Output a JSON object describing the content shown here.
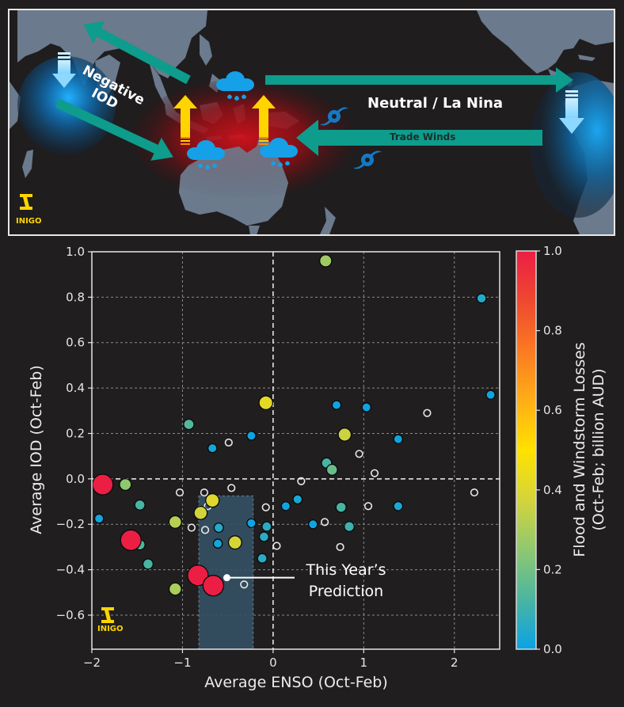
{
  "map": {
    "iod_label_line1": "Negative",
    "iod_label_line2": "IOD",
    "enso_label": "Neutral / La Nina",
    "trade_winds_label": "Trade Winds",
    "logo_text": "INIGO",
    "colors": {
      "ocean": "#1f1d1e",
      "land": "#6b7a8c",
      "arrow_teal": "#0e9c8c",
      "arrow_yellow": "#ffd400",
      "cloud_blue": "#16a0e8",
      "cyclone_blue": "#1479c4",
      "warm_glow": "#b0121a",
      "cool_glow": "#1aa0ea"
    },
    "icons": [
      "down-arrow-icon",
      "up-arrow-icon",
      "rain-cloud-icon",
      "cyclone-icon",
      "inigo-logo-icon"
    ]
  },
  "chart_data": {
    "type": "scatter",
    "xlabel": "Average ENSO (Oct-Feb)",
    "ylabel": "Average IOD (Oct-Feb)",
    "xlim": [
      -2.0,
      2.5
    ],
    "ylim": [
      -0.75,
      1.0
    ],
    "xticks": [
      "−2",
      "−1",
      "0",
      "1",
      "2"
    ],
    "xtick_values": [
      -2,
      -1,
      0,
      1,
      2
    ],
    "yticks": [
      "1.0",
      "0.8",
      "0.6",
      "0.4",
      "0.2",
      "0.0",
      "−0.2",
      "−0.4",
      "−0.6"
    ],
    "ytick_values": [
      1.0,
      0.8,
      0.6,
      0.4,
      0.2,
      0.0,
      -0.2,
      -0.4,
      -0.6
    ],
    "grid": true,
    "zero_lines": true,
    "colorbar": {
      "label_line1": "Flood and Windstorm Losses",
      "label_line2": "(Oct-Feb; billion AUD)",
      "range": [
        0.0,
        1.0
      ],
      "ticks": [
        "0.0",
        "0.2",
        "0.4",
        "0.6",
        "0.8",
        "1.0"
      ],
      "tick_values": [
        0.0,
        0.2,
        0.4,
        0.6,
        0.8,
        1.0
      ],
      "stops": [
        "#0aa2e6",
        "#4bb5a0",
        "#8fc870",
        "#d4d43a",
        "#ffe200",
        "#ffae16",
        "#fb7a22",
        "#ef4830",
        "#ec1e44"
      ]
    },
    "prediction_region": {
      "x_range": [
        -0.82,
        -0.22
      ],
      "y_range": [
        -0.75,
        -0.075
      ],
      "fill": "#345064"
    },
    "annotation": {
      "line1": "This Year’s",
      "line2": "Prediction",
      "point": [
        -0.51,
        -0.435
      ]
    },
    "logo_text": "INIGO",
    "points": [
      {
        "x": -1.88,
        "y": -0.025,
        "loss": 1.0
      },
      {
        "x": -1.63,
        "y": -0.025,
        "loss": 0.25
      },
      {
        "x": -1.47,
        "y": -0.115,
        "loss": 0.12
      },
      {
        "x": -1.92,
        "y": -0.175,
        "loss": 0.02
      },
      {
        "x": -1.47,
        "y": -0.29,
        "loss": 0.13
      },
      {
        "x": -1.57,
        "y": -0.27,
        "loss": 1.0
      },
      {
        "x": -1.38,
        "y": -0.375,
        "loss": 0.12
      },
      {
        "x": -1.08,
        "y": -0.19,
        "loss": 0.32
      },
      {
        "x": -1.08,
        "y": -0.485,
        "loss": 0.3
      },
      {
        "x": -0.83,
        "y": -0.425,
        "loss": 1.0
      },
      {
        "x": -0.66,
        "y": -0.47,
        "loss": 1.0
      },
      {
        "x": -0.8,
        "y": -0.15,
        "loss": 0.37
      },
      {
        "x": -0.67,
        "y": -0.095,
        "loss": 0.4
      },
      {
        "x": -0.42,
        "y": -0.28,
        "loss": 0.38
      },
      {
        "x": -0.6,
        "y": -0.215,
        "loss": 0.05
      },
      {
        "x": -0.61,
        "y": -0.285,
        "loss": 0.02
      },
      {
        "x": -0.24,
        "y": -0.195,
        "loss": 0.01
      },
      {
        "x": -0.07,
        "y": -0.21,
        "loss": 0.06
      },
      {
        "x": -0.1,
        "y": -0.255,
        "loss": 0.06
      },
      {
        "x": -0.12,
        "y": -0.35,
        "loss": 0.06
      },
      {
        "x": -0.93,
        "y": 0.24,
        "loss": 0.14
      },
      {
        "x": -0.67,
        "y": 0.135,
        "loss": 0.02
      },
      {
        "x": -0.24,
        "y": 0.19,
        "loss": 0.01
      },
      {
        "x": -0.08,
        "y": 0.335,
        "loss": 0.42
      },
      {
        "x": 0.58,
        "y": 0.96,
        "loss": 0.28
      },
      {
        "x": 0.7,
        "y": 0.325,
        "loss": 0.01
      },
      {
        "x": 1.03,
        "y": 0.315,
        "loss": 0.01
      },
      {
        "x": 0.79,
        "y": 0.195,
        "loss": 0.36
      },
      {
        "x": 1.38,
        "y": 0.175,
        "loss": 0.01
      },
      {
        "x": 0.59,
        "y": 0.07,
        "loss": 0.12
      },
      {
        "x": 0.65,
        "y": 0.04,
        "loss": 0.18
      },
      {
        "x": 2.3,
        "y": 0.795,
        "loss": 0.05
      },
      {
        "x": 2.4,
        "y": 0.37,
        "loss": 0.01
      },
      {
        "x": 0.14,
        "y": -0.12,
        "loss": 0.01
      },
      {
        "x": 0.27,
        "y": -0.09,
        "loss": 0.03
      },
      {
        "x": 0.44,
        "y": -0.2,
        "loss": 0.01
      },
      {
        "x": 0.75,
        "y": -0.125,
        "loss": 0.12
      },
      {
        "x": 0.84,
        "y": -0.21,
        "loss": 0.1
      },
      {
        "x": 1.38,
        "y": -0.12,
        "loss": 0.03
      },
      {
        "x": -1.03,
        "y": -0.06,
        "loss": null
      },
      {
        "x": -0.76,
        "y": -0.06,
        "loss": null
      },
      {
        "x": -0.46,
        "y": -0.04,
        "loss": null
      },
      {
        "x": -0.72,
        "y": -0.12,
        "loss": null
      },
      {
        "x": -0.9,
        "y": -0.215,
        "loss": null
      },
      {
        "x": -0.75,
        "y": -0.225,
        "loss": null
      },
      {
        "x": -0.32,
        "y": -0.465,
        "loss": null
      },
      {
        "x": -0.08,
        "y": -0.125,
        "loss": null
      },
      {
        "x": 0.04,
        "y": -0.295,
        "loss": null
      },
      {
        "x": 0.31,
        "y": -0.01,
        "loss": null
      },
      {
        "x": 0.57,
        "y": -0.19,
        "loss": null
      },
      {
        "x": 0.74,
        "y": -0.3,
        "loss": null
      },
      {
        "x": 1.05,
        "y": -0.12,
        "loss": null
      },
      {
        "x": -0.49,
        "y": 0.16,
        "loss": null
      },
      {
        "x": 0.95,
        "y": 0.11,
        "loss": null
      },
      {
        "x": 1.12,
        "y": 0.025,
        "loss": null
      },
      {
        "x": 1.7,
        "y": 0.29,
        "loss": null
      },
      {
        "x": 2.22,
        "y": -0.06,
        "loss": null
      }
    ]
  }
}
